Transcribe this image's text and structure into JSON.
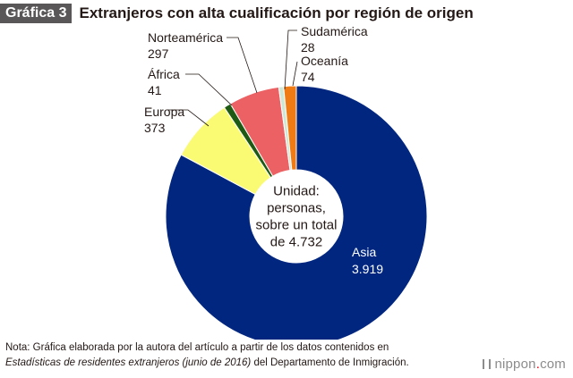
{
  "header": {
    "badge": "Gráfica 3",
    "title": "Extranjeros con alta cualificación por región de origen"
  },
  "chart_data": {
    "type": "pie",
    "donut": true,
    "title": "Extranjeros con alta cualificación por región de origen",
    "center_label": [
      "Unidad:",
      "personas,",
      "sobre un total",
      "de 4.732"
    ],
    "total": 4732,
    "slices": [
      {
        "key": "asia",
        "name": "Asia",
        "value": 3919,
        "value_label": "3.919",
        "color": "#002680"
      },
      {
        "key": "europa",
        "name": "Europa",
        "value": 373,
        "value_label": "373",
        "color": "#fafa73"
      },
      {
        "key": "africa",
        "name": "África",
        "value": 41,
        "value_label": "41",
        "color": "#1e5a14"
      },
      {
        "key": "norteamerica",
        "name": "Norteamérica",
        "value": 297,
        "value_label": "297",
        "color": "#ec6163"
      },
      {
        "key": "sudamerica",
        "name": "Sudamérica",
        "value": 28,
        "value_label": "28",
        "color": "#cfe8d6"
      },
      {
        "key": "oceania",
        "name": "Oceanía",
        "value": 74,
        "value_label": "74",
        "color": "#f07a14"
      }
    ]
  },
  "footnote": {
    "line1": "Nota: Gráfica elaborada por la autora del artículo a partir de los datos contenidos en",
    "source_italic": "Estadísticas de residentes extranjeros (junio de 2016)",
    "source_rest": " del Departamento de Inmigración."
  },
  "logo": {
    "left": "nippon",
    "dot": ".",
    "right": "com"
  }
}
